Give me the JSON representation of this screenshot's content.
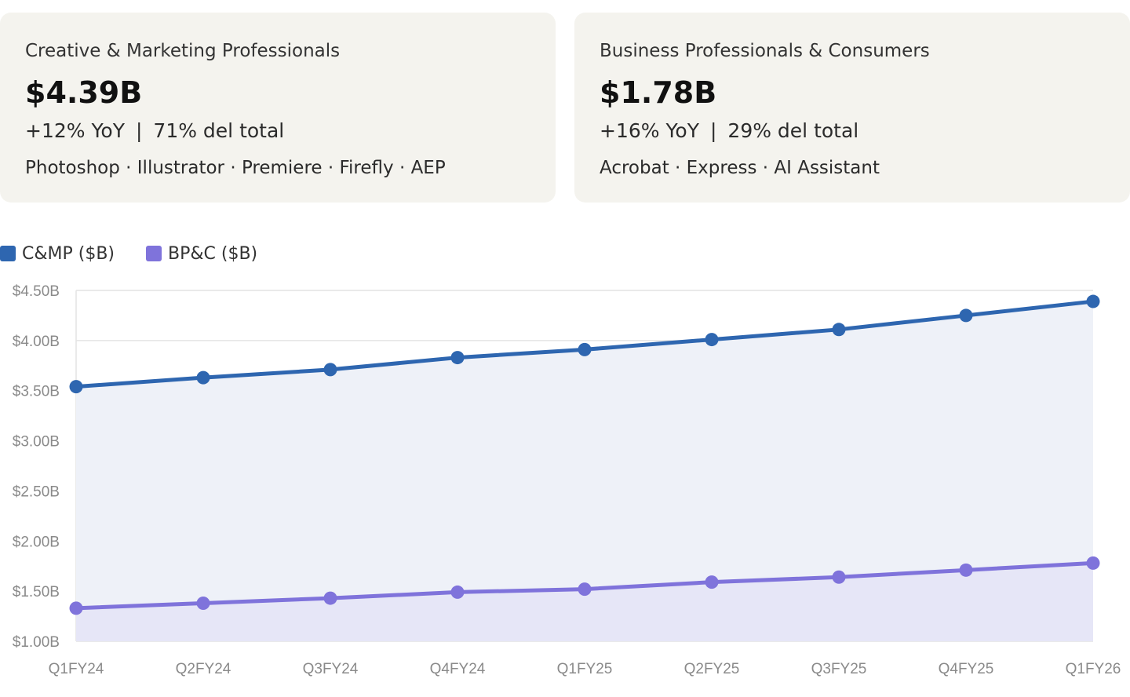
{
  "cards": [
    {
      "label": "Creative & Marketing Professionals",
      "value": "$4.39B",
      "yoy": "+12% YoY",
      "share": "71% del total",
      "products": "Photoshop · Illustrator · Premiere · Firefly · AEP"
    },
    {
      "label": "Business Professionals & Consumers",
      "value": "$1.78B",
      "yoy": "+16% YoY",
      "share": "29% del total",
      "products": "Acrobat · Express · AI Assistant"
    }
  ],
  "separator": "|",
  "colors": {
    "cmp": "#2e66b0",
    "bpc": "#7f73db",
    "cmp_fill": "#eef1f8",
    "bpc_fill": "#e6e6f7",
    "grid": "#e4e4e4",
    "card_bg": "#f4f3ee"
  },
  "chart_data": {
    "type": "area",
    "title": "",
    "xlabel": "",
    "ylabel": "",
    "categories": [
      "Q1FY24",
      "Q2FY24",
      "Q3FY24",
      "Q4FY24",
      "Q1FY25",
      "Q2FY25",
      "Q3FY25",
      "Q4FY25",
      "Q1FY26"
    ],
    "series": [
      {
        "name": "C&MP ($B)",
        "values": [
          3.54,
          3.63,
          3.71,
          3.83,
          3.91,
          4.01,
          4.11,
          4.25,
          4.39
        ]
      },
      {
        "name": "BP&C ($B)",
        "values": [
          1.33,
          1.38,
          1.43,
          1.49,
          1.52,
          1.59,
          1.64,
          1.71,
          1.78
        ]
      }
    ],
    "ylim": [
      1.0,
      4.5
    ],
    "yticks": [
      "$4.50B",
      "$4.00B",
      "$3.50B",
      "$3.00B",
      "$2.50B",
      "$2.00B",
      "$1.50B",
      "$1.00B"
    ],
    "ytick_values": [
      4.5,
      4.0,
      3.5,
      3.0,
      2.5,
      2.0,
      1.5,
      1.0
    ],
    "grid": true,
    "legend_position": "top-left"
  }
}
